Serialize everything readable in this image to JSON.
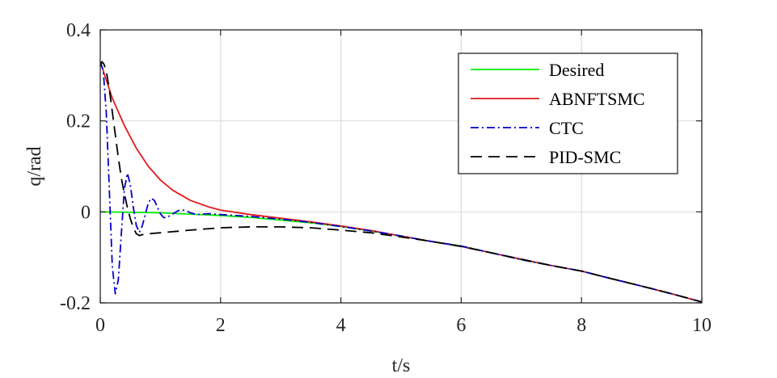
{
  "chart_data": {
    "type": "line",
    "xlabel": "t/s",
    "ylabel": "q/rad",
    "xlim": [
      0,
      10
    ],
    "ylim": [
      -0.2,
      0.4
    ],
    "x_ticks": [
      0,
      2,
      4,
      6,
      8,
      10
    ],
    "x_tick_labels": [
      "0",
      "2",
      "4",
      "6",
      "8",
      "10"
    ],
    "y_ticks": [
      -0.2,
      0,
      0.2,
      0.4
    ],
    "y_tick_labels": [
      "-0.2",
      "0",
      "0.2",
      "0.4"
    ],
    "grid": true,
    "legend_position": "top-right",
    "series": [
      {
        "name": "Desired",
        "color": "#00ee00",
        "style": "solid",
        "x": [
          0,
          0.5,
          1,
          1.5,
          2,
          2.5,
          3,
          3.5,
          4,
          4.5,
          5,
          5.5,
          6,
          6.5,
          7,
          7.5,
          8,
          8.5,
          9,
          9.5,
          10
        ],
        "y": [
          0,
          -0.001,
          -0.002,
          -0.005,
          -0.008,
          -0.012,
          -0.018,
          -0.024,
          -0.032,
          -0.042,
          -0.053,
          -0.065,
          -0.075,
          -0.09,
          -0.105,
          -0.118,
          -0.13,
          -0.147,
          -0.163,
          -0.18,
          -0.198
        ]
      },
      {
        "name": "ABNFTSMC",
        "color": "#e31a1c",
        "style": "solid",
        "x": [
          0,
          0.1,
          0.2,
          0.3,
          0.4,
          0.5,
          0.6,
          0.8,
          1.0,
          1.2,
          1.5,
          1.8,
          2.0,
          2.5,
          3.0,
          3.5,
          4.0,
          4.5,
          5,
          5.5,
          6,
          6.5,
          7,
          7.5,
          8,
          8.5,
          9,
          9.5,
          10
        ],
        "y": [
          0.33,
          0.29,
          0.25,
          0.22,
          0.19,
          0.165,
          0.14,
          0.1,
          0.07,
          0.048,
          0.025,
          0.011,
          0.004,
          -0.006,
          -0.014,
          -0.022,
          -0.031,
          -0.041,
          -0.053,
          -0.065,
          -0.076,
          -0.09,
          -0.104,
          -0.118,
          -0.13,
          -0.147,
          -0.163,
          -0.18,
          -0.198
        ]
      },
      {
        "name": "CTC",
        "color": "#0000cc",
        "style": "dashdot",
        "x": [
          0,
          0.05,
          0.1,
          0.15,
          0.2,
          0.25,
          0.3,
          0.35,
          0.4,
          0.45,
          0.5,
          0.55,
          0.6,
          0.65,
          0.7,
          0.75,
          0.8,
          0.85,
          0.9,
          0.95,
          1.0,
          1.05,
          1.1,
          1.2,
          1.3,
          1.4,
          1.5,
          1.6,
          1.8,
          2.0,
          2.5,
          3,
          3.5,
          4,
          4.5,
          5,
          5.5,
          6,
          6.5,
          7,
          7.5,
          8,
          8.5,
          9,
          9.5,
          10
        ],
        "y": [
          0.33,
          0.31,
          0.22,
          0.05,
          -0.12,
          -0.18,
          -0.15,
          -0.05,
          0.05,
          0.085,
          0.06,
          0.01,
          -0.03,
          -0.045,
          -0.03,
          -0.005,
          0.02,
          0.03,
          0.025,
          0.01,
          -0.004,
          -0.012,
          -0.013,
          -0.005,
          0.003,
          0.004,
          -0.002,
          -0.006,
          -0.004,
          -0.006,
          -0.01,
          -0.016,
          -0.023,
          -0.032,
          -0.042,
          -0.053,
          -0.065,
          -0.075,
          -0.09,
          -0.105,
          -0.118,
          -0.13,
          -0.147,
          -0.163,
          -0.18,
          -0.198
        ]
      },
      {
        "name": "PID-SMC",
        "color": "#000000",
        "style": "dashed",
        "x": [
          0,
          0.03,
          0.06,
          0.1,
          0.15,
          0.2,
          0.25,
          0.3,
          0.35,
          0.4,
          0.45,
          0.5,
          0.55,
          0.6,
          0.65,
          0.7,
          0.8,
          1.0,
          1.5,
          2.0,
          2.5,
          3.0,
          3.5,
          4.0,
          4.5,
          5,
          5.5,
          6,
          6.5,
          7,
          7.5,
          8,
          8.5,
          9,
          9.5,
          10
        ],
        "y": [
          0.32,
          0.33,
          0.325,
          0.31,
          0.27,
          0.22,
          0.17,
          0.12,
          0.075,
          0.04,
          0.01,
          -0.015,
          -0.035,
          -0.048,
          -0.052,
          -0.05,
          -0.048,
          -0.046,
          -0.04,
          -0.035,
          -0.033,
          -0.033,
          -0.035,
          -0.04,
          -0.046,
          -0.055,
          -0.065,
          -0.076,
          -0.09,
          -0.104,
          -0.118,
          -0.13,
          -0.147,
          -0.163,
          -0.18,
          -0.198
        ]
      }
    ]
  }
}
